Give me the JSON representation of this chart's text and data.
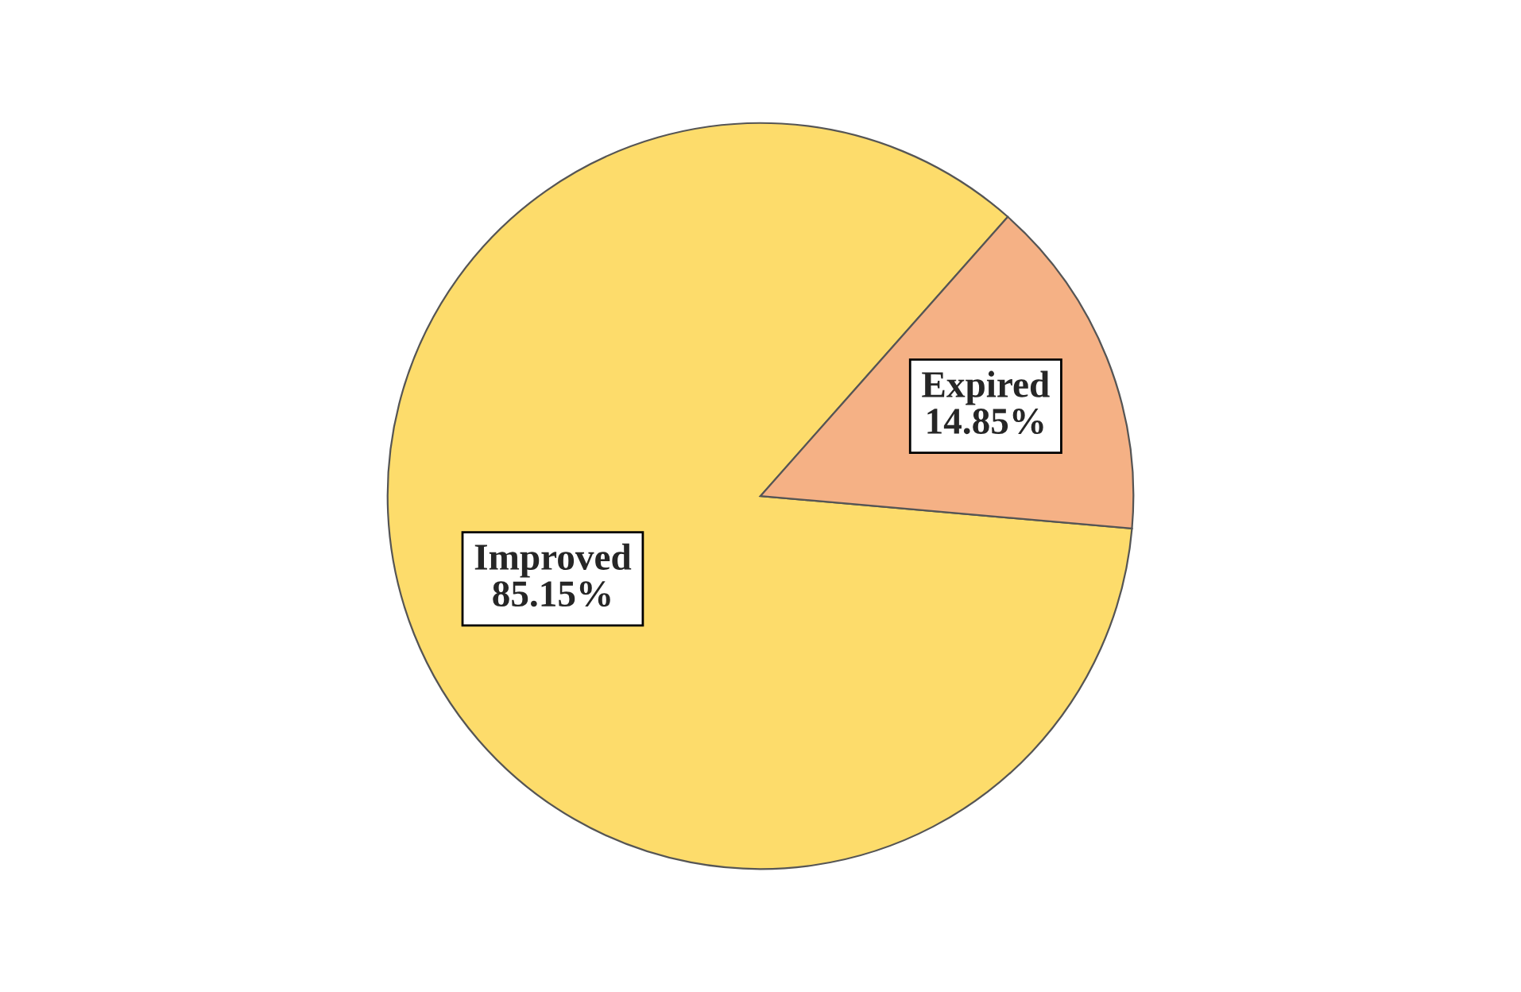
{
  "chart_data": {
    "type": "pie",
    "categories": [
      "Improved",
      "Expired"
    ],
    "values": [
      85.15,
      14.85
    ],
    "value_labels": [
      "85.15%",
      "14.85%"
    ],
    "colors": [
      "#fddc6b",
      "#f5b185"
    ]
  }
}
